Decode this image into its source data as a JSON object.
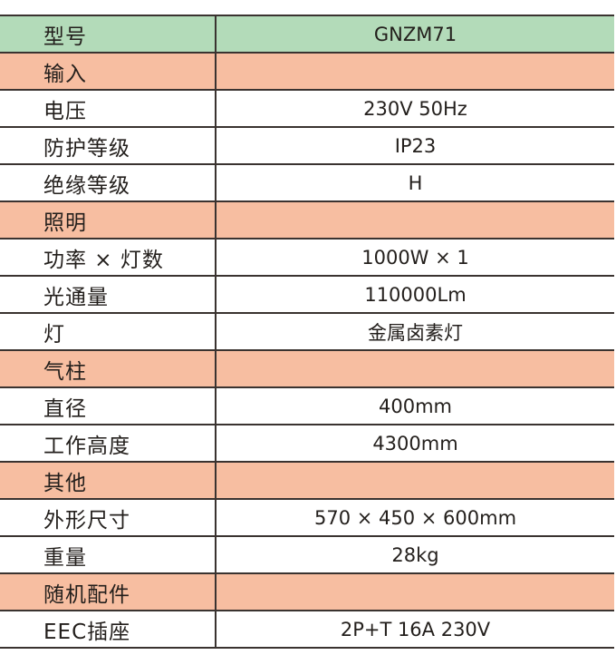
{
  "colors": {
    "header": "#b3dbb9",
    "section": "#f7bea1"
  },
  "rows": [
    {
      "type": "head",
      "label": "型号",
      "value": "GNZM71"
    },
    {
      "type": "sec",
      "label": "输入",
      "value": ""
    },
    {
      "type": "row",
      "label": "电压",
      "value": "230V  50Hz"
    },
    {
      "type": "row",
      "label": "防护等级",
      "value": "IP23"
    },
    {
      "type": "row",
      "label": "绝缘等级",
      "value": "H"
    },
    {
      "type": "sec",
      "label": "照明",
      "value": ""
    },
    {
      "type": "row",
      "label": "功率 × 灯数",
      "value": "1000W × 1"
    },
    {
      "type": "row",
      "label": "光通量",
      "value": "110000Lm"
    },
    {
      "type": "row",
      "label": "灯",
      "value": "金属卤素灯"
    },
    {
      "type": "sec",
      "label": "气柱",
      "value": ""
    },
    {
      "type": "row",
      "label": "直径",
      "value": "400mm"
    },
    {
      "type": "row",
      "label": "工作高度",
      "value": "4300mm"
    },
    {
      "type": "sec",
      "label": "其他",
      "value": ""
    },
    {
      "type": "row",
      "label": "外形尺寸",
      "value": "570 × 450 × 600mm"
    },
    {
      "type": "row",
      "label": "重量",
      "value": "28kg"
    },
    {
      "type": "sec",
      "label": "随机配件",
      "value": ""
    },
    {
      "type": "row",
      "label": "EEC插座",
      "value": "2P+T  16A  230V"
    }
  ]
}
